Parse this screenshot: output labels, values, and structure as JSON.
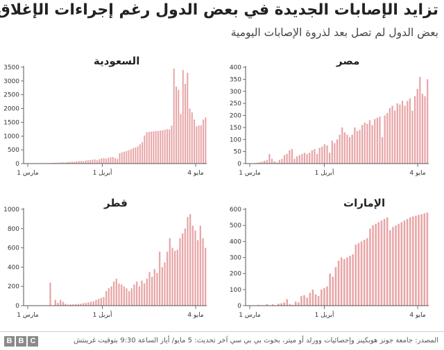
{
  "header": {
    "title": "تزايد الإصابات الجديدة في بعض الدول رغم إجراءات الإغلاق",
    "subtitle": "بعض الدول لم تصل بعد لذروة الإصابات اليومية"
  },
  "colors": {
    "bar": "#e8a5a7",
    "axis": "#555555",
    "grid": "#cccccc"
  },
  "chart_data": [
    {
      "type": "bar",
      "title": "السعودية",
      "x_tick_labels": [
        "1 مارس",
        "1 أبريل",
        "4 مايو"
      ],
      "ylim": [
        0,
        3500
      ],
      "yticks": [
        0,
        500,
        1000,
        1500,
        2000,
        2500,
        3000,
        3500
      ],
      "values": [
        0,
        0,
        2,
        3,
        5,
        8,
        10,
        15,
        12,
        18,
        20,
        20,
        25,
        30,
        28,
        35,
        40,
        45,
        40,
        55,
        60,
        70,
        65,
        80,
        90,
        100,
        85,
        110,
        120,
        130,
        140,
        150,
        120,
        160,
        190,
        200,
        180,
        210,
        230,
        240,
        200,
        170,
        380,
        410,
        430,
        460,
        480,
        520,
        560,
        590,
        620,
        700,
        780,
        1020,
        1140,
        1150,
        1160,
        1170,
        1180,
        1190,
        1200,
        1210,
        1230,
        1250,
        1240,
        1380,
        3450,
        2800,
        2680,
        1800,
        3400,
        2900,
        3300,
        2000,
        1860,
        1600,
        1350,
        1380,
        1390,
        1600,
        1680
      ]
    },
    {
      "type": "bar",
      "title": "مصر",
      "x_tick_labels": [
        "1 مارس",
        "1 أبريل",
        "4 مايو"
      ],
      "ylim": [
        0,
        400
      ],
      "yticks": [
        0,
        50,
        100,
        150,
        200,
        250,
        300,
        350,
        400
      ],
      "values": [
        0,
        1,
        0,
        2,
        3,
        5,
        8,
        12,
        15,
        40,
        20,
        10,
        5,
        15,
        20,
        35,
        40,
        55,
        60,
        20,
        30,
        35,
        40,
        45,
        40,
        45,
        55,
        60,
        40,
        65,
        70,
        80,
        75,
        45,
        95,
        85,
        100,
        120,
        150,
        130,
        120,
        110,
        120,
        150,
        135,
        140,
        160,
        170,
        165,
        180,
        160,
        185,
        190,
        195,
        110,
        200,
        210,
        230,
        240,
        220,
        250,
        245,
        260,
        240,
        260,
        270,
        220,
        280,
        310,
        360,
        290,
        280,
        350
      ]
    },
    {
      "type": "bar",
      "title": "قطر",
      "x_tick_labels": [
        "1 مارس",
        "1 أبريل",
        "4 مايو"
      ],
      "ylim": [
        0,
        1000
      ],
      "yticks": [
        0,
        200,
        400,
        600,
        800,
        1000
      ],
      "values": [
        0,
        0,
        0,
        0,
        0,
        0,
        0,
        0,
        0,
        0,
        238,
        0,
        60,
        30,
        60,
        40,
        20,
        10,
        12,
        15,
        16,
        18,
        20,
        25,
        30,
        35,
        40,
        45,
        60,
        70,
        80,
        90,
        150,
        180,
        200,
        250,
        280,
        230,
        220,
        200,
        180,
        150,
        180,
        220,
        250,
        200,
        260,
        230,
        280,
        350,
        300,
        380,
        340,
        560,
        400,
        450,
        560,
        700,
        600,
        570,
        580,
        700,
        750,
        800,
        920,
        950,
        830,
        780,
        680,
        830,
        700,
        600
      ]
    },
    {
      "type": "bar",
      "title": "الإمارات",
      "x_tick_labels": [
        "1 مارس",
        "1 أبريل",
        "4 مايو"
      ],
      "ylim": [
        0,
        600
      ],
      "yticks": [
        0,
        100,
        200,
        300,
        400,
        500,
        600
      ],
      "values": [
        0,
        0,
        0,
        0,
        5,
        0,
        3,
        10,
        0,
        8,
        0,
        12,
        15,
        20,
        40,
        10,
        5,
        25,
        20,
        60,
        65,
        50,
        80,
        100,
        70,
        60,
        100,
        110,
        120,
        200,
        180,
        240,
        280,
        300,
        290,
        300,
        310,
        320,
        380,
        390,
        400,
        410,
        420,
        480,
        500,
        510,
        520,
        530,
        540,
        550,
        470,
        490,
        500,
        510,
        520,
        530,
        540,
        550,
        555,
        560,
        565,
        570,
        575,
        580
      ]
    }
  ],
  "footer": {
    "logo_letters": [
      "B",
      "B",
      "C"
    ],
    "source": "المصدر: جامعة جونز هوبكينز وإحصائيات وورلد أو ميتر، بحوث بي بي سي آخر تحديث: 5 مايو/ أيار الساعة 9:30 بتوقيت غرينتش"
  }
}
